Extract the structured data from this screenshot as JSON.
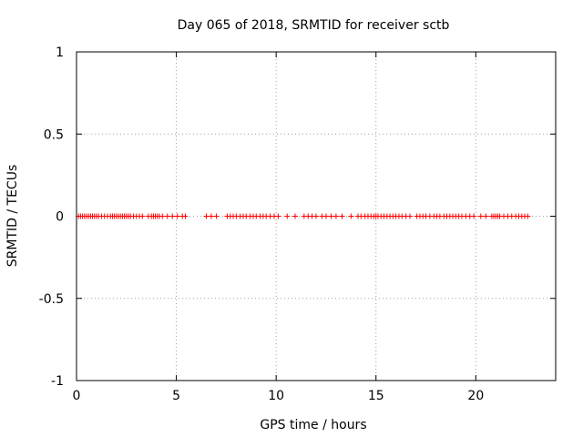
{
  "chart_data": {
    "type": "scatter",
    "title": "Day 065 of 2018, SRMTID for receiver sctb",
    "xlabel": "GPS time / hours",
    "ylabel": "SRMTID / TECUs",
    "xlim": [
      0,
      24
    ],
    "ylim": [
      -1,
      1
    ],
    "xticks": [
      0,
      5,
      10,
      15,
      20
    ],
    "yticks": [
      1,
      0.5,
      0,
      -0.5,
      -1
    ],
    "xtick_labels": [
      "0",
      "5",
      "10",
      "15",
      "20"
    ],
    "ytick_labels": [
      "1",
      "0.5",
      "0",
      "-0.5",
      "-1"
    ],
    "grid": true,
    "marker": "+",
    "series": [
      {
        "name": "SRMTID",
        "color": "#ff0000",
        "x": [
          0.1,
          0.2,
          0.3,
          0.4,
          0.5,
          0.6,
          0.7,
          0.8,
          0.9,
          1.0,
          1.1,
          1.25,
          1.4,
          1.55,
          1.7,
          1.8,
          1.9,
          2.0,
          2.1,
          2.2,
          2.3,
          2.4,
          2.5,
          2.6,
          2.7,
          2.85,
          3.0,
          3.15,
          3.3,
          3.6,
          3.75,
          3.85,
          3.95,
          4.05,
          4.15,
          4.3,
          4.55,
          4.8,
          5.05,
          5.3,
          5.45,
          6.5,
          6.75,
          7.0,
          7.55,
          7.7,
          7.85,
          8.0,
          8.2,
          8.35,
          8.5,
          8.7,
          8.85,
          9.0,
          9.2,
          9.35,
          9.5,
          9.7,
          9.9,
          10.1,
          10.55,
          10.95,
          11.4,
          11.6,
          11.8,
          12.0,
          12.3,
          12.5,
          12.75,
          13.0,
          13.3,
          13.75,
          14.1,
          14.25,
          14.45,
          14.6,
          14.75,
          14.9,
          15.0,
          15.1,
          15.25,
          15.4,
          15.55,
          15.7,
          15.85,
          16.0,
          16.15,
          16.3,
          16.5,
          16.7,
          17.05,
          17.2,
          17.35,
          17.5,
          17.7,
          17.9,
          18.05,
          18.2,
          18.4,
          18.55,
          18.7,
          18.85,
          19.0,
          19.15,
          19.3,
          19.5,
          19.7,
          19.9,
          20.25,
          20.5,
          20.8,
          20.9,
          21.0,
          21.1,
          21.2,
          21.4,
          21.6,
          21.8,
          22.0,
          22.15,
          22.3,
          22.45,
          22.6
        ],
        "y": [
          0,
          0,
          0,
          0,
          0,
          0,
          0,
          0,
          0,
          0,
          0,
          0,
          0,
          0,
          0,
          0,
          0,
          0,
          0,
          0,
          0,
          0,
          0,
          0,
          0,
          0,
          0,
          0,
          0,
          0,
          0,
          0,
          0,
          0,
          0,
          0,
          0,
          0,
          0,
          0,
          0,
          0,
          0,
          0,
          0,
          0,
          0,
          0,
          0,
          0,
          0,
          0,
          0,
          0,
          0,
          0,
          0,
          0,
          0,
          0,
          0,
          0,
          0,
          0,
          0,
          0,
          0,
          0,
          0,
          0,
          0,
          0,
          0,
          0,
          0,
          0,
          0,
          0,
          0,
          0,
          0,
          0,
          0,
          0,
          0,
          0,
          0,
          0,
          0,
          0,
          0,
          0,
          0,
          0,
          0,
          0,
          0,
          0,
          0,
          0,
          0,
          0,
          0,
          0,
          0,
          0,
          0,
          0,
          0,
          0,
          0,
          0,
          0,
          0,
          0,
          0,
          0,
          0,
          0,
          0,
          0,
          0,
          0
        ]
      }
    ]
  }
}
